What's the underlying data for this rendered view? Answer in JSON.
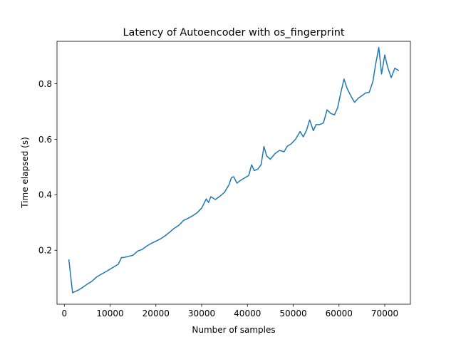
{
  "chart_data": {
    "type": "line",
    "title": "Latency of Autoencoder with os_fingerprint",
    "xlabel": "Number of samples",
    "ylabel": "Time elapsed (s)",
    "xlim": [
      -1600,
      75600
    ],
    "ylim": [
      0.0055,
      0.953
    ],
    "xticks": [
      0,
      10000,
      20000,
      30000,
      40000,
      50000,
      60000,
      70000
    ],
    "xtick_labels": [
      "0",
      "10000",
      "20000",
      "30000",
      "40000",
      "50000",
      "60000",
      "70000"
    ],
    "yticks": [
      0.2,
      0.4,
      0.6,
      0.8
    ],
    "ytick_labels": [
      "0.2",
      "0.4",
      "0.6",
      "0.8"
    ],
    "grid": false,
    "series": [
      {
        "color": "#1f77b4",
        "x": [
          1000,
          1800,
          3000,
          4000,
          5000,
          6000,
          7000,
          8000,
          9000,
          10000,
          11000,
          11800,
          12500,
          13000,
          14000,
          15000,
          16000,
          17000,
          18000,
          19000,
          20000,
          21000,
          22000,
          23000,
          24000,
          25000,
          25500,
          26000,
          27000,
          28000,
          29000,
          30000,
          31000,
          31500,
          32000,
          33000,
          34000,
          35000,
          36000,
          36500,
          37000,
          37700,
          38500,
          39500,
          40300,
          40900,
          41500,
          42300,
          43000,
          43600,
          44200,
          45000,
          46000,
          47000,
          48000,
          48700,
          49500,
          50500,
          51500,
          52200,
          52900,
          53600,
          54400,
          55000,
          55800,
          56600,
          57400,
          58200,
          59000,
          59700,
          60400,
          61100,
          61800,
          62600,
          63400,
          64200,
          65000,
          65800,
          66600,
          67400,
          68000,
          68700,
          69300,
          70000,
          70600,
          71400,
          72200,
          73000
        ],
        "y": [
          0.165,
          0.047,
          0.056,
          0.066,
          0.078,
          0.088,
          0.103,
          0.113,
          0.122,
          0.132,
          0.142,
          0.15,
          0.174,
          0.174,
          0.178,
          0.182,
          0.197,
          0.203,
          0.215,
          0.225,
          0.233,
          0.241,
          0.252,
          0.265,
          0.279,
          0.29,
          0.298,
          0.307,
          0.315,
          0.324,
          0.335,
          0.352,
          0.385,
          0.372,
          0.393,
          0.383,
          0.395,
          0.409,
          0.437,
          0.462,
          0.465,
          0.442,
          0.452,
          0.462,
          0.47,
          0.508,
          0.487,
          0.493,
          0.509,
          0.574,
          0.54,
          0.528,
          0.548,
          0.56,
          0.555,
          0.575,
          0.583,
          0.6,
          0.628,
          0.609,
          0.632,
          0.67,
          0.631,
          0.653,
          0.653,
          0.659,
          0.706,
          0.693,
          0.688,
          0.713,
          0.768,
          0.817,
          0.782,
          0.756,
          0.733,
          0.748,
          0.757,
          0.767,
          0.769,
          0.808,
          0.87,
          0.931,
          0.835,
          0.904,
          0.862,
          0.822,
          0.856,
          0.848
        ]
      }
    ]
  }
}
